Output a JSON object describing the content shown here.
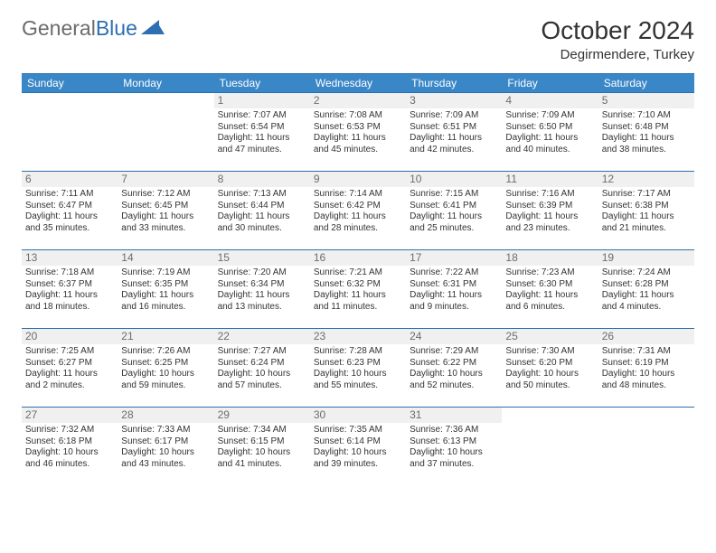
{
  "logo": {
    "general": "General",
    "blue": "Blue"
  },
  "header": {
    "month": "October 2024",
    "location": "Degirmendere, Turkey"
  },
  "colors": {
    "header_bg": "#3a87c8",
    "header_text": "#ffffff",
    "border": "#2d6fb0",
    "daynum_bg": "#f0f0f0",
    "daynum_text": "#6d6d6d",
    "body_text": "#333333",
    "logo_gray": "#6b6b6b",
    "logo_blue": "#2d6fb0"
  },
  "weekdays": [
    "Sunday",
    "Monday",
    "Tuesday",
    "Wednesday",
    "Thursday",
    "Friday",
    "Saturday"
  ],
  "weeks": [
    [
      {
        "n": "",
        "sr": "",
        "ss": "",
        "dl": ""
      },
      {
        "n": "",
        "sr": "",
        "ss": "",
        "dl": ""
      },
      {
        "n": "1",
        "sr": "Sunrise: 7:07 AM",
        "ss": "Sunset: 6:54 PM",
        "dl": "Daylight: 11 hours and 47 minutes."
      },
      {
        "n": "2",
        "sr": "Sunrise: 7:08 AM",
        "ss": "Sunset: 6:53 PM",
        "dl": "Daylight: 11 hours and 45 minutes."
      },
      {
        "n": "3",
        "sr": "Sunrise: 7:09 AM",
        "ss": "Sunset: 6:51 PM",
        "dl": "Daylight: 11 hours and 42 minutes."
      },
      {
        "n": "4",
        "sr": "Sunrise: 7:09 AM",
        "ss": "Sunset: 6:50 PM",
        "dl": "Daylight: 11 hours and 40 minutes."
      },
      {
        "n": "5",
        "sr": "Sunrise: 7:10 AM",
        "ss": "Sunset: 6:48 PM",
        "dl": "Daylight: 11 hours and 38 minutes."
      }
    ],
    [
      {
        "n": "6",
        "sr": "Sunrise: 7:11 AM",
        "ss": "Sunset: 6:47 PM",
        "dl": "Daylight: 11 hours and 35 minutes."
      },
      {
        "n": "7",
        "sr": "Sunrise: 7:12 AM",
        "ss": "Sunset: 6:45 PM",
        "dl": "Daylight: 11 hours and 33 minutes."
      },
      {
        "n": "8",
        "sr": "Sunrise: 7:13 AM",
        "ss": "Sunset: 6:44 PM",
        "dl": "Daylight: 11 hours and 30 minutes."
      },
      {
        "n": "9",
        "sr": "Sunrise: 7:14 AM",
        "ss": "Sunset: 6:42 PM",
        "dl": "Daylight: 11 hours and 28 minutes."
      },
      {
        "n": "10",
        "sr": "Sunrise: 7:15 AM",
        "ss": "Sunset: 6:41 PM",
        "dl": "Daylight: 11 hours and 25 minutes."
      },
      {
        "n": "11",
        "sr": "Sunrise: 7:16 AM",
        "ss": "Sunset: 6:39 PM",
        "dl": "Daylight: 11 hours and 23 minutes."
      },
      {
        "n": "12",
        "sr": "Sunrise: 7:17 AM",
        "ss": "Sunset: 6:38 PM",
        "dl": "Daylight: 11 hours and 21 minutes."
      }
    ],
    [
      {
        "n": "13",
        "sr": "Sunrise: 7:18 AM",
        "ss": "Sunset: 6:37 PM",
        "dl": "Daylight: 11 hours and 18 minutes."
      },
      {
        "n": "14",
        "sr": "Sunrise: 7:19 AM",
        "ss": "Sunset: 6:35 PM",
        "dl": "Daylight: 11 hours and 16 minutes."
      },
      {
        "n": "15",
        "sr": "Sunrise: 7:20 AM",
        "ss": "Sunset: 6:34 PM",
        "dl": "Daylight: 11 hours and 13 minutes."
      },
      {
        "n": "16",
        "sr": "Sunrise: 7:21 AM",
        "ss": "Sunset: 6:32 PM",
        "dl": "Daylight: 11 hours and 11 minutes."
      },
      {
        "n": "17",
        "sr": "Sunrise: 7:22 AM",
        "ss": "Sunset: 6:31 PM",
        "dl": "Daylight: 11 hours and 9 minutes."
      },
      {
        "n": "18",
        "sr": "Sunrise: 7:23 AM",
        "ss": "Sunset: 6:30 PM",
        "dl": "Daylight: 11 hours and 6 minutes."
      },
      {
        "n": "19",
        "sr": "Sunrise: 7:24 AM",
        "ss": "Sunset: 6:28 PM",
        "dl": "Daylight: 11 hours and 4 minutes."
      }
    ],
    [
      {
        "n": "20",
        "sr": "Sunrise: 7:25 AM",
        "ss": "Sunset: 6:27 PM",
        "dl": "Daylight: 11 hours and 2 minutes."
      },
      {
        "n": "21",
        "sr": "Sunrise: 7:26 AM",
        "ss": "Sunset: 6:25 PM",
        "dl": "Daylight: 10 hours and 59 minutes."
      },
      {
        "n": "22",
        "sr": "Sunrise: 7:27 AM",
        "ss": "Sunset: 6:24 PM",
        "dl": "Daylight: 10 hours and 57 minutes."
      },
      {
        "n": "23",
        "sr": "Sunrise: 7:28 AM",
        "ss": "Sunset: 6:23 PM",
        "dl": "Daylight: 10 hours and 55 minutes."
      },
      {
        "n": "24",
        "sr": "Sunrise: 7:29 AM",
        "ss": "Sunset: 6:22 PM",
        "dl": "Daylight: 10 hours and 52 minutes."
      },
      {
        "n": "25",
        "sr": "Sunrise: 7:30 AM",
        "ss": "Sunset: 6:20 PM",
        "dl": "Daylight: 10 hours and 50 minutes."
      },
      {
        "n": "26",
        "sr": "Sunrise: 7:31 AM",
        "ss": "Sunset: 6:19 PM",
        "dl": "Daylight: 10 hours and 48 minutes."
      }
    ],
    [
      {
        "n": "27",
        "sr": "Sunrise: 7:32 AM",
        "ss": "Sunset: 6:18 PM",
        "dl": "Daylight: 10 hours and 46 minutes."
      },
      {
        "n": "28",
        "sr": "Sunrise: 7:33 AM",
        "ss": "Sunset: 6:17 PM",
        "dl": "Daylight: 10 hours and 43 minutes."
      },
      {
        "n": "29",
        "sr": "Sunrise: 7:34 AM",
        "ss": "Sunset: 6:15 PM",
        "dl": "Daylight: 10 hours and 41 minutes."
      },
      {
        "n": "30",
        "sr": "Sunrise: 7:35 AM",
        "ss": "Sunset: 6:14 PM",
        "dl": "Daylight: 10 hours and 39 minutes."
      },
      {
        "n": "31",
        "sr": "Sunrise: 7:36 AM",
        "ss": "Sunset: 6:13 PM",
        "dl": "Daylight: 10 hours and 37 minutes."
      },
      {
        "n": "",
        "sr": "",
        "ss": "",
        "dl": ""
      },
      {
        "n": "",
        "sr": "",
        "ss": "",
        "dl": ""
      }
    ]
  ]
}
